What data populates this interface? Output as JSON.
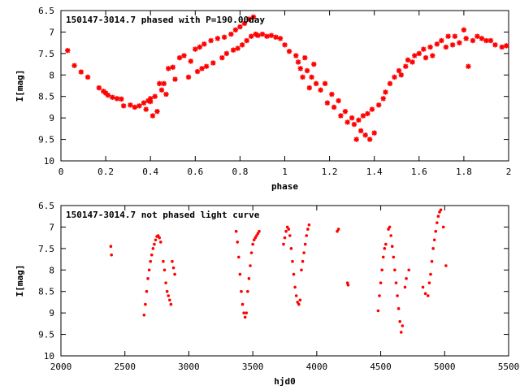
{
  "colors": {
    "points": "#ff0000",
    "axis": "#000000",
    "background": "#ffffff"
  },
  "chart_data": [
    {
      "type": "scatter",
      "title": "150147-3014.7 phased with P=190.00day",
      "xlabel": "phase",
      "ylabel": "I[mag]",
      "xlim": [
        0,
        2
      ],
      "ylim": [
        6.5,
        10
      ],
      "y_inverted": true,
      "grid": false,
      "marker": "asterisk",
      "xticks": [
        "0",
        "0.2",
        "0.4",
        "0.6",
        "0.8",
        "1",
        "1.2",
        "1.4",
        "1.6",
        "1.8",
        "2"
      ],
      "yticks": [
        "6.5",
        "7",
        "7.5",
        "8",
        "8.5",
        "9",
        "9.5",
        "10"
      ],
      "series": [
        {
          "points": [
            [
              0.03,
              7.43
            ],
            [
              0.06,
              7.78
            ],
            [
              0.09,
              7.93
            ],
            [
              0.12,
              8.05
            ],
            [
              0.17,
              8.3
            ],
            [
              0.19,
              8.38
            ],
            [
              0.2,
              8.42
            ],
            [
              0.21,
              8.47
            ],
            [
              0.23,
              8.52
            ],
            [
              0.25,
              8.55
            ],
            [
              0.27,
              8.56
            ],
            [
              0.28,
              8.72
            ],
            [
              0.31,
              8.7
            ],
            [
              0.33,
              8.75
            ],
            [
              0.35,
              8.72
            ],
            [
              0.37,
              8.65
            ],
            [
              0.38,
              8.8
            ],
            [
              0.39,
              8.6
            ],
            [
              0.4,
              8.55
            ],
            [
              0.4,
              8.62
            ],
            [
              0.41,
              8.95
            ],
            [
              0.42,
              8.5
            ],
            [
              0.43,
              8.85
            ],
            [
              0.44,
              8.2
            ],
            [
              0.45,
              8.35
            ],
            [
              0.46,
              8.2
            ],
            [
              0.47,
              8.45
            ],
            [
              0.48,
              7.85
            ],
            [
              0.5,
              7.82
            ],
            [
              0.51,
              8.1
            ],
            [
              0.53,
              7.6
            ],
            [
              0.55,
              7.55
            ],
            [
              0.57,
              8.05
            ],
            [
              0.58,
              7.68
            ],
            [
              0.6,
              7.4
            ],
            [
              0.61,
              7.92
            ],
            [
              0.62,
              7.35
            ],
            [
              0.63,
              7.85
            ],
            [
              0.64,
              7.28
            ],
            [
              0.65,
              7.8
            ],
            [
              0.67,
              7.2
            ],
            [
              0.68,
              7.72
            ],
            [
              0.7,
              7.15
            ],
            [
              0.72,
              7.6
            ],
            [
              0.73,
              7.12
            ],
            [
              0.74,
              7.5
            ],
            [
              0.76,
              7.05
            ],
            [
              0.77,
              7.42
            ],
            [
              0.78,
              6.95
            ],
            [
              0.79,
              7.38
            ],
            [
              0.8,
              6.88
            ],
            [
              0.81,
              7.3
            ],
            [
              0.82,
              6.8
            ],
            [
              0.83,
              7.2
            ],
            [
              0.84,
              6.7
            ],
            [
              0.85,
              7.1
            ],
            [
              0.86,
              6.65
            ],
            [
              0.87,
              7.05
            ],
            [
              0.88,
              7.08
            ],
            [
              0.9,
              7.05
            ],
            [
              0.92,
              7.1
            ],
            [
              0.94,
              7.08
            ],
            [
              0.96,
              7.12
            ],
            [
              0.98,
              7.15
            ],
            [
              1.0,
              7.3
            ],
            [
              1.02,
              7.45
            ],
            [
              1.05,
              7.55
            ],
            [
              1.06,
              7.7
            ],
            [
              1.07,
              7.85
            ],
            [
              1.08,
              8.05
            ],
            [
              1.09,
              7.6
            ],
            [
              1.1,
              7.9
            ],
            [
              1.11,
              8.3
            ],
            [
              1.12,
              8.05
            ],
            [
              1.13,
              7.75
            ],
            [
              1.14,
              8.2
            ],
            [
              1.16,
              8.35
            ],
            [
              1.18,
              8.2
            ],
            [
              1.19,
              8.65
            ],
            [
              1.21,
              8.45
            ],
            [
              1.22,
              8.75
            ],
            [
              1.24,
              8.6
            ],
            [
              1.25,
              8.95
            ],
            [
              1.27,
              8.85
            ],
            [
              1.28,
              9.1
            ],
            [
              1.3,
              9.0
            ],
            [
              1.31,
              9.15
            ],
            [
              1.32,
              9.5
            ],
            [
              1.33,
              9.05
            ],
            [
              1.34,
              9.3
            ],
            [
              1.35,
              8.95
            ],
            [
              1.36,
              9.4
            ],
            [
              1.37,
              8.9
            ],
            [
              1.38,
              9.5
            ],
            [
              1.39,
              8.8
            ],
            [
              1.4,
              9.35
            ],
            [
              1.42,
              8.7
            ],
            [
              1.44,
              8.55
            ],
            [
              1.45,
              8.4
            ],
            [
              1.47,
              8.2
            ],
            [
              1.49,
              8.05
            ],
            [
              1.51,
              7.9
            ],
            [
              1.52,
              8.0
            ],
            [
              1.54,
              7.8
            ],
            [
              1.55,
              7.65
            ],
            [
              1.57,
              7.7
            ],
            [
              1.58,
              7.55
            ],
            [
              1.6,
              7.5
            ],
            [
              1.62,
              7.4
            ],
            [
              1.63,
              7.6
            ],
            [
              1.65,
              7.35
            ],
            [
              1.66,
              7.55
            ],
            [
              1.68,
              7.28
            ],
            [
              1.7,
              7.2
            ],
            [
              1.72,
              7.35
            ],
            [
              1.73,
              7.1
            ],
            [
              1.75,
              7.3
            ],
            [
              1.76,
              7.1
            ],
            [
              1.78,
              7.25
            ],
            [
              1.8,
              6.95
            ],
            [
              1.81,
              7.15
            ],
            [
              1.82,
              7.8
            ],
            [
              1.84,
              7.2
            ],
            [
              1.86,
              7.1
            ],
            [
              1.88,
              7.15
            ],
            [
              1.9,
              7.2
            ],
            [
              1.92,
              7.2
            ],
            [
              1.94,
              7.3
            ],
            [
              1.97,
              7.35
            ],
            [
              1.99,
              7.32
            ]
          ]
        }
      ]
    },
    {
      "type": "scatter",
      "title": "150147-3014.7 not phased light curve",
      "xlabel": "hjd0",
      "ylabel": "I[mag]",
      "xlim": [
        2000,
        5500
      ],
      "ylim": [
        6.5,
        10
      ],
      "y_inverted": true,
      "grid": false,
      "marker": "dot",
      "xticks": [
        "2000",
        "2500",
        "3000",
        "3500",
        "4000",
        "4500",
        "5000",
        "5500"
      ],
      "yticks": [
        "6.5",
        "7",
        "7.5",
        "8",
        "8.5",
        "9",
        "9.5",
        "10"
      ],
      "series": [
        {
          "points": [
            [
              2390,
              7.45
            ],
            [
              2395,
              7.65
            ],
            [
              2650,
              9.05
            ],
            [
              2660,
              8.8
            ],
            [
              2670,
              8.5
            ],
            [
              2680,
              8.2
            ],
            [
              2690,
              8.0
            ],
            [
              2700,
              7.8
            ],
            [
              2710,
              7.65
            ],
            [
              2720,
              7.5
            ],
            [
              2730,
              7.4
            ],
            [
              2740,
              7.3
            ],
            [
              2750,
              7.22
            ],
            [
              2760,
              7.2
            ],
            [
              2770,
              7.25
            ],
            [
              2780,
              7.35
            ],
            [
              2800,
              7.8
            ],
            [
              2810,
              8.0
            ],
            [
              2820,
              8.3
            ],
            [
              2830,
              8.5
            ],
            [
              2840,
              8.6
            ],
            [
              2850,
              8.7
            ],
            [
              2860,
              8.8
            ],
            [
              2870,
              7.8
            ],
            [
              2880,
              7.95
            ],
            [
              2890,
              8.1
            ],
            [
              3370,
              7.1
            ],
            [
              3380,
              7.35
            ],
            [
              3390,
              7.7
            ],
            [
              3400,
              8.1
            ],
            [
              3410,
              8.5
            ],
            [
              3420,
              8.8
            ],
            [
              3430,
              9.0
            ],
            [
              3440,
              9.1
            ],
            [
              3450,
              9.0
            ],
            [
              3460,
              8.5
            ],
            [
              3470,
              8.2
            ],
            [
              3480,
              7.9
            ],
            [
              3490,
              7.6
            ],
            [
              3500,
              7.4
            ],
            [
              3510,
              7.3
            ],
            [
              3520,
              7.25
            ],
            [
              3530,
              7.2
            ],
            [
              3540,
              7.15
            ],
            [
              3550,
              7.1
            ],
            [
              3740,
              7.4
            ],
            [
              3750,
              7.25
            ],
            [
              3760,
              7.1
            ],
            [
              3770,
              7.0
            ],
            [
              3780,
              7.05
            ],
            [
              3790,
              7.2
            ],
            [
              3800,
              7.5
            ],
            [
              3810,
              7.8
            ],
            [
              3820,
              8.1
            ],
            [
              3830,
              8.4
            ],
            [
              3840,
              8.6
            ],
            [
              3850,
              8.75
            ],
            [
              3860,
              8.8
            ],
            [
              3870,
              8.7
            ],
            [
              3880,
              8.0
            ],
            [
              3890,
              7.8
            ],
            [
              3900,
              7.6
            ],
            [
              3910,
              7.4
            ],
            [
              3920,
              7.2
            ],
            [
              3930,
              7.05
            ],
            [
              3940,
              6.95
            ],
            [
              4160,
              7.1
            ],
            [
              4170,
              7.05
            ],
            [
              4240,
              8.3
            ],
            [
              4245,
              8.35
            ],
            [
              4480,
              8.95
            ],
            [
              4490,
              8.6
            ],
            [
              4500,
              8.3
            ],
            [
              4510,
              8.0
            ],
            [
              4520,
              7.7
            ],
            [
              4530,
              7.5
            ],
            [
              4540,
              7.4
            ],
            [
              4560,
              7.05
            ],
            [
              4570,
              7.0
            ],
            [
              4580,
              7.2
            ],
            [
              4590,
              7.45
            ],
            [
              4600,
              7.7
            ],
            [
              4610,
              8.0
            ],
            [
              4620,
              8.3
            ],
            [
              4630,
              8.6
            ],
            [
              4640,
              8.9
            ],
            [
              4650,
              9.2
            ],
            [
              4660,
              9.45
            ],
            [
              4670,
              9.3
            ],
            [
              4690,
              8.4
            ],
            [
              4700,
              8.2
            ],
            [
              4720,
              8.0
            ],
            [
              4830,
              8.4
            ],
            [
              4850,
              8.55
            ],
            [
              4870,
              8.6
            ],
            [
              4880,
              8.3
            ],
            [
              4890,
              8.1
            ],
            [
              4900,
              7.8
            ],
            [
              4910,
              7.5
            ],
            [
              4920,
              7.3
            ],
            [
              4930,
              7.1
            ],
            [
              4940,
              6.9
            ],
            [
              4950,
              6.75
            ],
            [
              4960,
              6.65
            ],
            [
              4970,
              6.6
            ],
            [
              4990,
              7.0
            ],
            [
              5010,
              7.9
            ]
          ]
        }
      ]
    }
  ]
}
